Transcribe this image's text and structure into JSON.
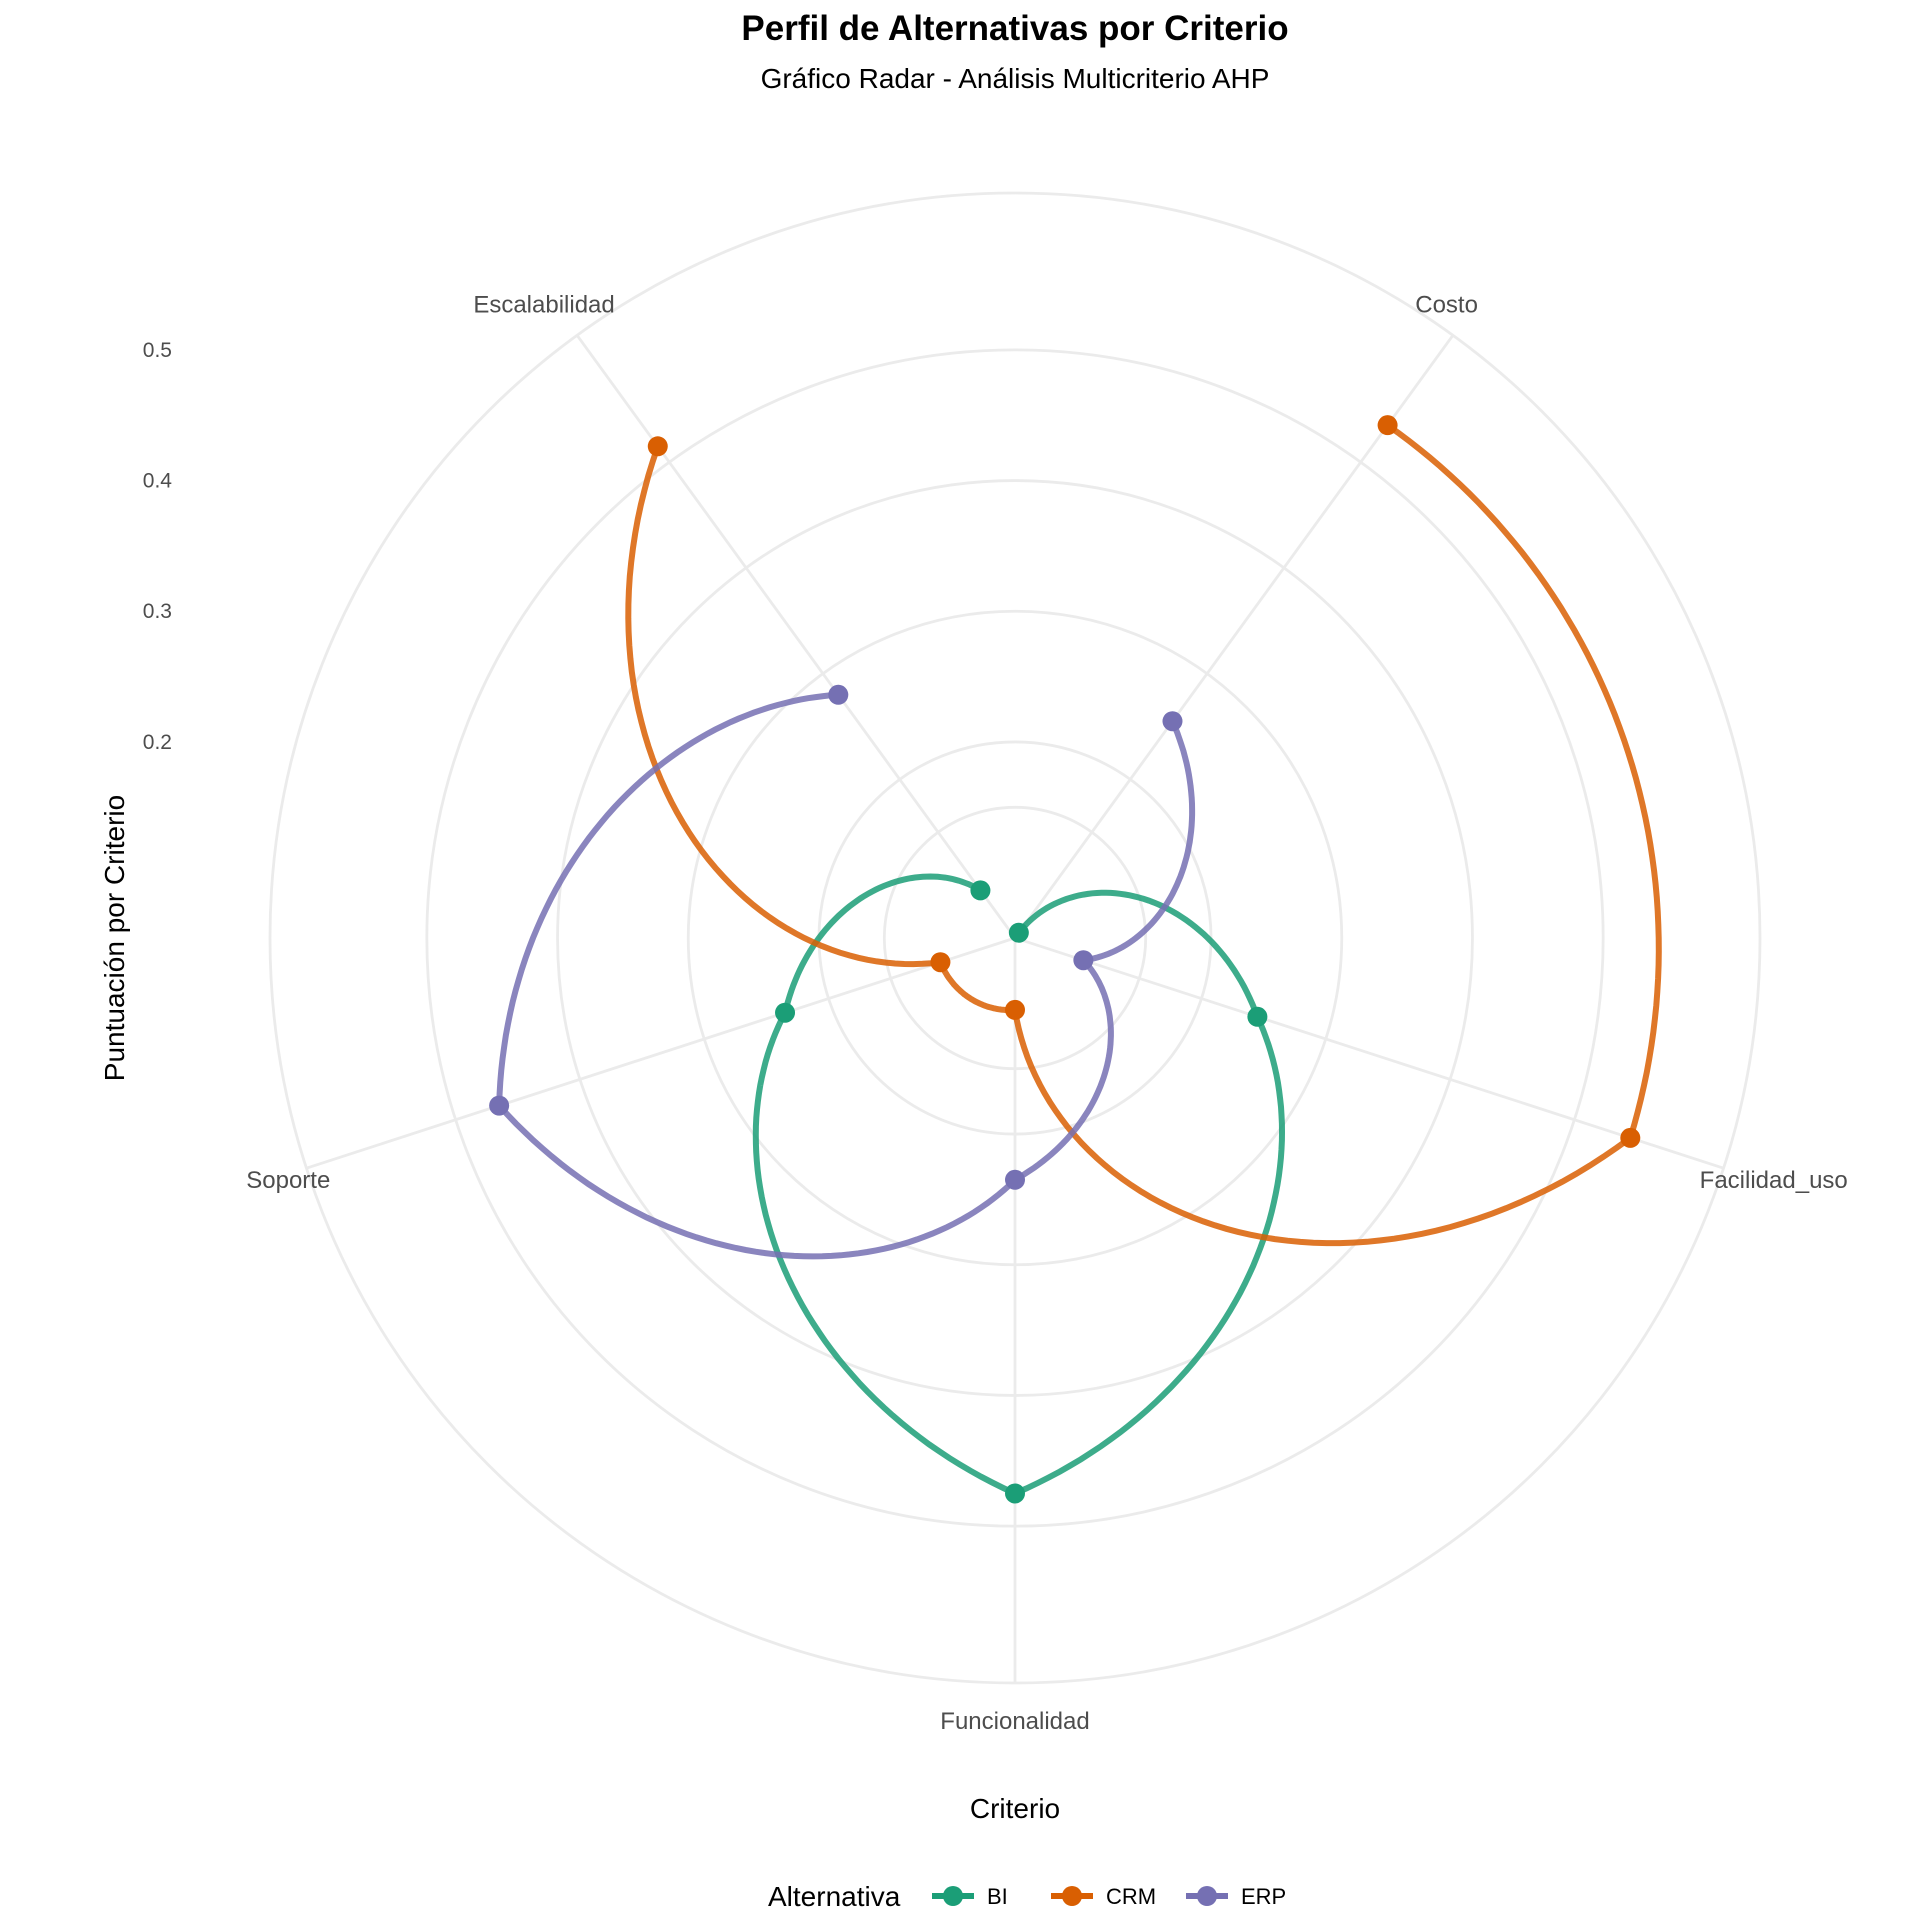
{
  "chart_data": {
    "type": "radar",
    "title": "Perfil de Alternativas por Criterio",
    "subtitle": "Gráfico Radar - Análisis Multicriterio AHP",
    "xlabel": "Criterio",
    "ylabel": "Puntuación por Criterio",
    "categories": [
      "Costo",
      "Facilidad_uso",
      "Funcionalidad",
      "Soporte",
      "Escalabilidad"
    ],
    "radial_ticks": [
      "0.2",
      "0.3",
      "0.4",
      "0.5"
    ],
    "radial_tick_values": [
      0.2,
      0.3,
      0.4,
      0.5
    ],
    "ylim": [
      0.05,
      0.62
    ],
    "grid": true,
    "legend_placement": "bottom",
    "legend_title": "Alternativa",
    "series": [
      {
        "name": "BI",
        "color": "#1b9e77",
        "values": [
          0.055,
          0.245,
          0.475,
          0.235,
          0.095
        ]
      },
      {
        "name": "CRM",
        "color": "#d95f02",
        "values": [
          0.535,
          0.545,
          0.105,
          0.11,
          0.515
        ]
      },
      {
        "name": "ERP",
        "color": "#7570b3",
        "values": [
          0.255,
          0.105,
          0.235,
          0.465,
          0.28
        ]
      }
    ]
  }
}
